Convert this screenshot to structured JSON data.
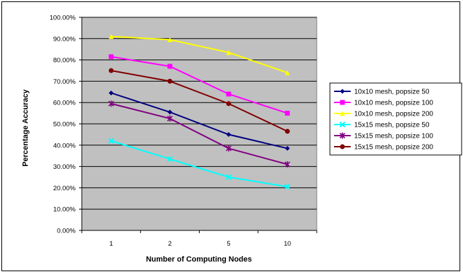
{
  "chart_data": {
    "type": "line",
    "title": "",
    "xlabel": "Number of Computing Nodes",
    "ylabel": "Percentage Accuracy",
    "categories": [
      "1",
      "2",
      "5",
      "10"
    ],
    "ylim": [
      0,
      100
    ],
    "yticks": [
      "0.00%",
      "10.00%",
      "20.00%",
      "30.00%",
      "40.00%",
      "50.00%",
      "60.00%",
      "70.00%",
      "80.00%",
      "90.00%",
      "100.00%"
    ],
    "grid": true,
    "plot_background": "#c0c0c0",
    "legend_position": "right",
    "series": [
      {
        "name": "10x10 mesh, popsize 50",
        "values": [
          64.5,
          55.5,
          45.0,
          38.5
        ],
        "color": "#000080",
        "marker": "diamond"
      },
      {
        "name": "10x10 mesh, popsize 100",
        "values": [
          81.5,
          77.0,
          64.0,
          55.0
        ],
        "color": "#ff00ff",
        "marker": "square"
      },
      {
        "name": "10x10 mesh, popsize 200",
        "values": [
          91.0,
          89.5,
          83.5,
          74.0
        ],
        "color": "#ffff00",
        "marker": "triangle"
      },
      {
        "name": "15x15 mesh, popsize 50",
        "values": [
          42.0,
          33.5,
          25.0,
          20.5
        ],
        "color": "#00ffff",
        "marker": "x"
      },
      {
        "name": "15x15 mesh, popsize 100",
        "values": [
          59.5,
          52.5,
          38.5,
          31.0
        ],
        "color": "#800080",
        "marker": "star"
      },
      {
        "name": "15x15 mesh, popsize 200",
        "values": [
          75.0,
          70.0,
          59.5,
          46.5
        ],
        "color": "#800000",
        "marker": "circle"
      }
    ]
  }
}
